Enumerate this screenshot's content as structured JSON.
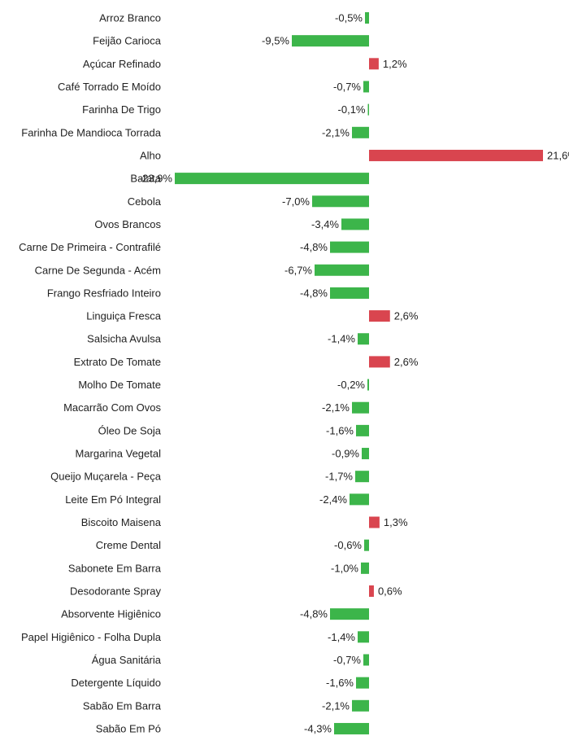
{
  "chart_data": {
    "type": "bar",
    "orientation": "horizontal",
    "categories": [
      "Arroz Branco",
      "Feijão Carioca",
      "Açúcar Refinado",
      "Café Torrado E Moído",
      "Farinha De Trigo",
      "Farinha De Mandioca Torrada",
      "Alho",
      "Batata",
      "Cebola",
      "Ovos Brancos",
      "Carne De Primeira - Contrafilé",
      "Carne De Segunda - Acém",
      "Frango Resfriado Inteiro",
      "Linguiça Fresca",
      "Salsicha Avulsa",
      "Extrato De Tomate",
      "Molho De Tomate",
      "Macarrão Com Ovos",
      "Óleo De Soja",
      "Margarina Vegetal",
      "Queijo Muçarela - Peça",
      "Leite Em Pó Integral",
      "Biscoito Maisena",
      "Creme Dental",
      "Sabonete Em Barra",
      "Desodorante Spray",
      "Absorvente Higiênico",
      "Papel Higiênico - Folha Dupla",
      "Água Sanitária",
      "Detergente Líquido",
      "Sabão Em Barra",
      "Sabão Em Pó"
    ],
    "values": [
      -0.5,
      -9.5,
      1.2,
      -0.7,
      -0.1,
      -2.1,
      21.6,
      -23.9,
      -7.0,
      -3.4,
      -4.8,
      -6.7,
      -4.8,
      2.6,
      -1.4,
      2.6,
      -0.2,
      -2.1,
      -1.6,
      -0.9,
      -1.7,
      -2.4,
      1.3,
      -0.6,
      -1.0,
      0.6,
      -4.8,
      -1.4,
      -0.7,
      -1.6,
      -2.1,
      -4.3
    ],
    "value_labels": [
      "-0,5%",
      "-9,5%",
      "1,2%",
      "-0,7%",
      "-0,1%",
      "-2,1%",
      "21,6%",
      "-23,9%",
      "-7,0%",
      "-3,4%",
      "-4,8%",
      "-6,7%",
      "-4,8%",
      "2,6%",
      "-1,4%",
      "2,6%",
      "-0,2%",
      "-2,1%",
      "-1,6%",
      "-0,9%",
      "-1,7%",
      "-2,4%",
      "1,3%",
      "-0,6%",
      "-1,0%",
      "0,6%",
      "-4,8%",
      "-1,4%",
      "-0,7%",
      "-1,6%",
      "-2,1%",
      "-4,3%"
    ],
    "unit": "%",
    "title": "",
    "xlabel": "",
    "ylabel": "",
    "xlim": [
      -23.9,
      21.6
    ],
    "grid": false,
    "legend": "none",
    "colors": {
      "negative": "#3cb54a",
      "positive": "#d9454f",
      "text": "#222222"
    }
  }
}
